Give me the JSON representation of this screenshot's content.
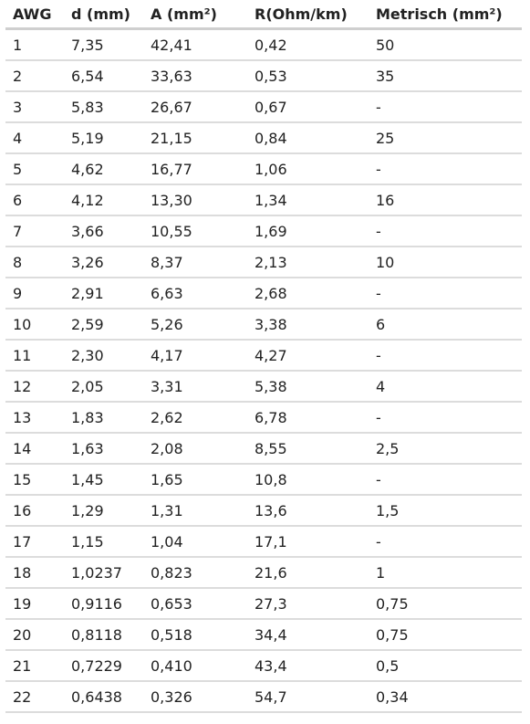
{
  "table": {
    "headers": [
      "AWG",
      "d (mm)",
      "A (mm²)",
      "R(Ohm/km)",
      "Metrisch (mm²)"
    ],
    "rows": [
      [
        "1",
        "7,35",
        "42,41",
        "0,42",
        "50"
      ],
      [
        "2",
        "6,54",
        "33,63",
        "0,53",
        "35"
      ],
      [
        "3",
        "5,83",
        "26,67",
        "0,67",
        "-"
      ],
      [
        "4",
        "5,19",
        "21,15",
        "0,84",
        "25"
      ],
      [
        "5",
        "4,62",
        "16,77",
        "1,06",
        "-"
      ],
      [
        "6",
        "4,12",
        "13,30",
        "1,34",
        "16"
      ],
      [
        "7",
        "3,66",
        "10,55",
        "1,69",
        "-"
      ],
      [
        "8",
        "3,26",
        "8,37",
        "2,13",
        "10"
      ],
      [
        "9",
        "2,91",
        "6,63",
        "2,68",
        "-"
      ],
      [
        "10",
        "2,59",
        "5,26",
        "3,38",
        "6"
      ],
      [
        "11",
        "2,30",
        "4,17",
        "4,27",
        "-"
      ],
      [
        "12",
        "2,05",
        "3,31",
        "5,38",
        "4"
      ],
      [
        "13",
        "1,83",
        "2,62",
        "6,78",
        "-"
      ],
      [
        "14",
        "1,63",
        "2,08",
        "8,55",
        "2,5"
      ],
      [
        "15",
        "1,45",
        "1,65",
        "10,8",
        "-"
      ],
      [
        "16",
        "1,29",
        "1,31",
        "13,6",
        "1,5"
      ],
      [
        "17",
        "1,15",
        "1,04",
        "17,1",
        "-"
      ],
      [
        "18",
        "1,0237",
        "0,823",
        "21,6",
        "1"
      ],
      [
        "19",
        "0,9116",
        "0,653",
        "27,3",
        "0,75"
      ],
      [
        "20",
        "0,8118",
        "0,518",
        "34,4",
        "0,75"
      ],
      [
        "21",
        "0,7229",
        "0,410",
        "43,4",
        "0,5"
      ],
      [
        "22",
        "0,6438",
        "0,326",
        "54,7",
        "0,34"
      ]
    ]
  }
}
